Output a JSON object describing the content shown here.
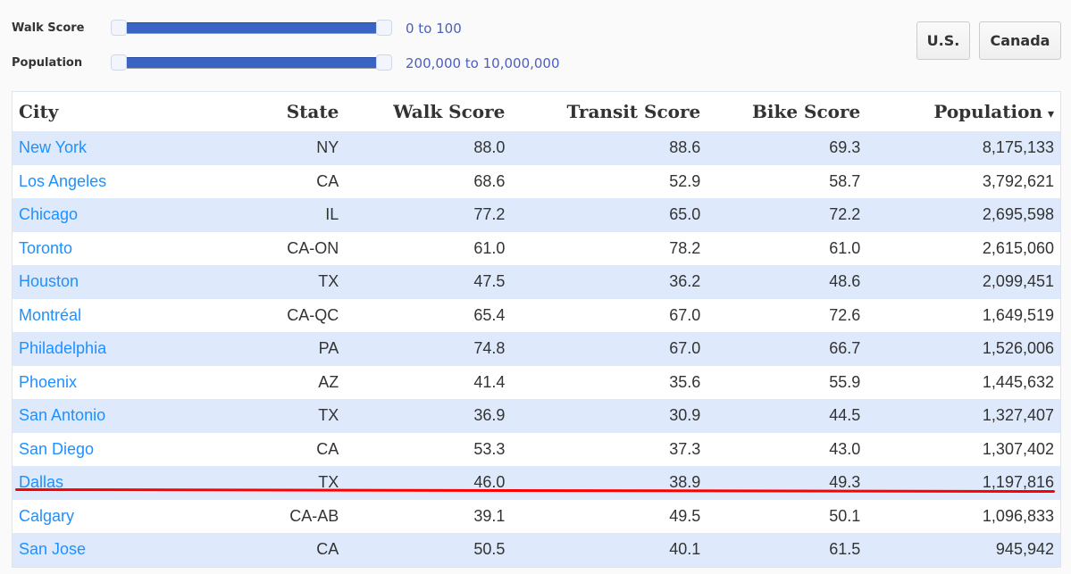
{
  "filters": {
    "walk_label": "Walk Score",
    "walk_range": "0 to 100",
    "pop_label": "Population",
    "pop_range": "200,000 to 10,000,000"
  },
  "buttons": {
    "us": "U.S.",
    "canada": "Canada"
  },
  "table": {
    "headers": [
      "City",
      "State",
      "Walk Score",
      "Transit Score",
      "Bike Score",
      "Population"
    ],
    "sort_indicator": "▾",
    "rows": [
      [
        "New York",
        "NY",
        "88.0",
        "88.6",
        "69.3",
        "8,175,133"
      ],
      [
        "Los Angeles",
        "CA",
        "68.6",
        "52.9",
        "58.7",
        "3,792,621"
      ],
      [
        "Chicago",
        "IL",
        "77.2",
        "65.0",
        "72.2",
        "2,695,598"
      ],
      [
        "Toronto",
        "CA-ON",
        "61.0",
        "78.2",
        "61.0",
        "2,615,060"
      ],
      [
        "Houston",
        "TX",
        "47.5",
        "36.2",
        "48.6",
        "2,099,451"
      ],
      [
        "Montréal",
        "CA-QC",
        "65.4",
        "67.0",
        "72.6",
        "1,649,519"
      ],
      [
        "Philadelphia",
        "PA",
        "74.8",
        "67.0",
        "66.7",
        "1,526,006"
      ],
      [
        "Phoenix",
        "AZ",
        "41.4",
        "35.6",
        "55.9",
        "1,445,632"
      ],
      [
        "San Antonio",
        "TX",
        "36.9",
        "30.9",
        "44.5",
        "1,327,407"
      ],
      [
        "San Diego",
        "CA",
        "53.3",
        "37.3",
        "43.0",
        "1,307,402"
      ],
      [
        "Dallas",
        "TX",
        "46.0",
        "38.9",
        "49.3",
        "1,197,816"
      ],
      [
        "Calgary",
        "CA-AB",
        "39.1",
        "49.5",
        "50.1",
        "1,096,833"
      ],
      [
        "San Jose",
        "CA",
        "50.5",
        "40.1",
        "61.5",
        "945,942"
      ]
    ]
  }
}
